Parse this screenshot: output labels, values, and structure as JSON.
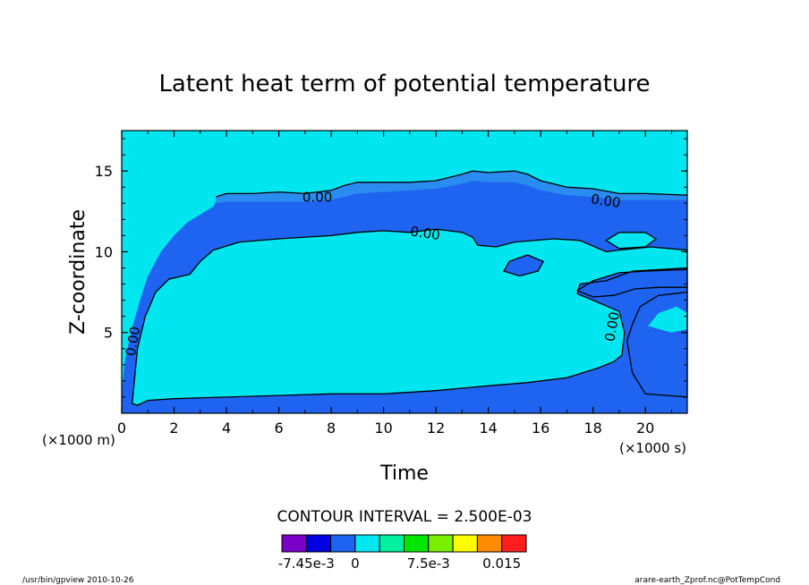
{
  "chart_data": {
    "type": "heatmap",
    "title": "Latent heat term of potential temperature",
    "xlabel": "Time",
    "ylabel": "Z-coordinate",
    "x_unit": "(×1000 s)",
    "y_unit": "(×1000 m)",
    "xlim": [
      0,
      21.6
    ],
    "ylim": [
      0,
      17.5
    ],
    "x_ticks": [
      0,
      2,
      4,
      6,
      8,
      10,
      12,
      14,
      16,
      18,
      20
    ],
    "x_tick_labels": [
      "0",
      "2",
      "4",
      "6",
      "8",
      "10",
      "12",
      "14",
      "16",
      "18",
      "20"
    ],
    "y_ticks": [
      5,
      10,
      15
    ],
    "y_tick_labels": [
      "5",
      "10",
      "15"
    ],
    "contour_interval_label": "CONTOUR INTERVAL = 2.500E-03",
    "contour_labels": [
      "0.00",
      "0.00",
      "0.00",
      "0.00",
      "0.00"
    ],
    "colorbar": {
      "colors": [
        "#7a00c8",
        "#0000e0",
        "#1e64f0",
        "#00e6f0",
        "#00f0a0",
        "#00e600",
        "#78f000",
        "#ffff00",
        "#ff8c00",
        "#ff1e1e"
      ],
      "labels": [
        "-7.45e-3",
        "0",
        "7.5e-3",
        "0.015"
      ]
    },
    "field_colors": {
      "background": "#00e6f0",
      "negative": "#1e64f0",
      "strong_negative": "#2a8cf0"
    },
    "grid": false
  },
  "footer": {
    "left": "/usr/bin/gpview   2010-10-26",
    "right": "arare-earth_Zprof.nc@PotTempCond"
  }
}
